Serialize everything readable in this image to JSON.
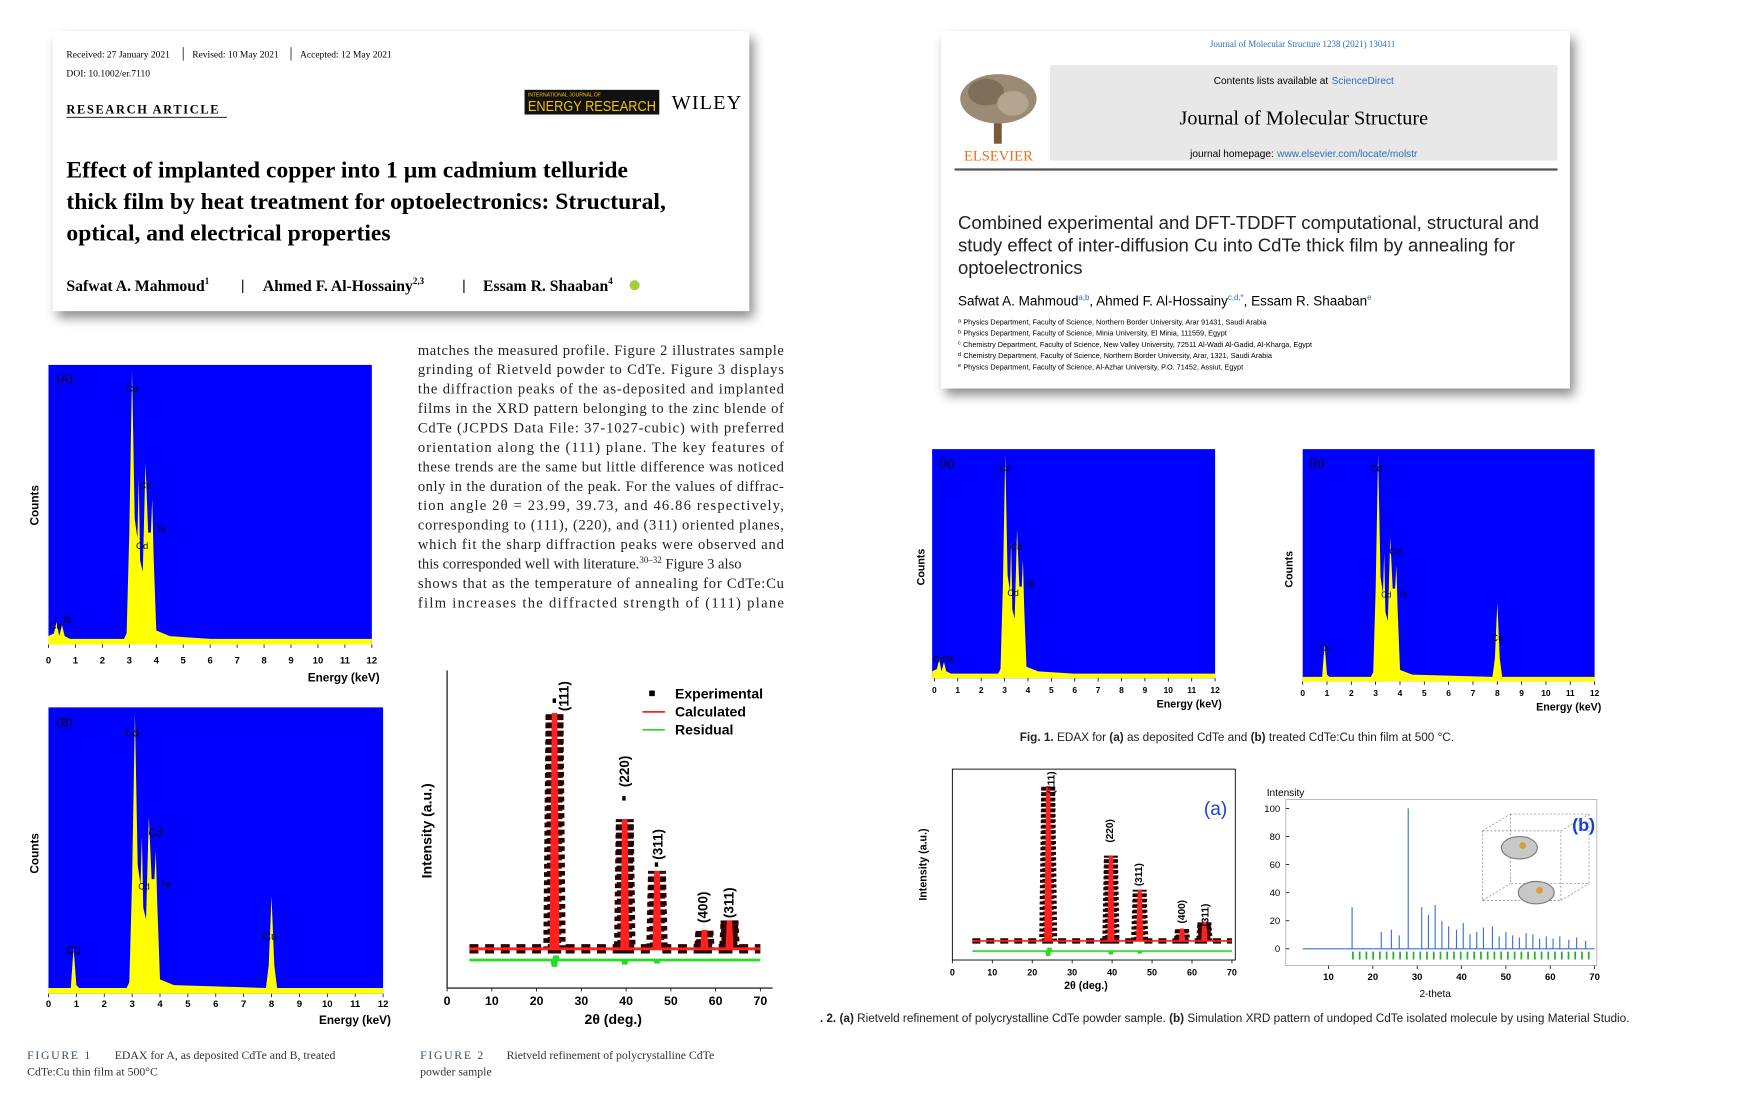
{
  "left_paper": {
    "received": "Received: 27 January 2021",
    "revised": "Revised: 10 May 2021",
    "accepted": "Accepted: 12 May 2021",
    "doi": "DOI: 10.1002/er.7110",
    "article_type": "RESEARCH ARTICLE",
    "journal_small": "INTERNATIONAL JOURNAL OF",
    "journal_name": "ENERGY RESEARCH",
    "publisher": "WILEY",
    "title_lines": [
      "Effect of implanted copper into 1 µm cadmium telluride",
      "thick film by heat treatment for optoelectronics: Structural,",
      "optical, and electrical properties"
    ],
    "authors": [
      {
        "name": "Safwat A. Mahmoud",
        "sup": "1"
      },
      {
        "name": "Ahmed F. Al-Hossainy",
        "sup": "2,3"
      },
      {
        "name": "Essam R. Shaaban",
        "sup": "4"
      }
    ]
  },
  "right_paper": {
    "citation": "Journal of Molecular Structure 1238 (2021) 130411",
    "contents": "Contents lists available at",
    "sciencedirect": "ScienceDirect",
    "journal": "Journal of Molecular Structure",
    "homepage": "journal homepage:",
    "url": "www.elsevier.com/locate/molstr",
    "publisher": "ELSEVIER",
    "title_lines": [
      "Combined experimental and DFT-TDDFT computational, structural and",
      "study effect of inter-diffusion Cu into CdTe thick film by annealing for",
      "optoelectronics"
    ],
    "authors": [
      {
        "name": "Safwat A. Mahmoud",
        "sup": "a,b"
      },
      {
        "name": ", Ahmed F. Al-Hossainy",
        "sup": "c,d,*"
      },
      {
        "name": ", Essam R. Shaaban",
        "sup": "e"
      }
    ],
    "affiliations": [
      {
        "mark": "a",
        "text": "Physics Department, Faculty of Science, Northern Border University, Arar 91431, Saudi Arabia"
      },
      {
        "mark": "b",
        "text": "Physics Department, Faculty of Science, Minia University, El Minia, 111559, Egypt"
      },
      {
        "mark": "c",
        "text": "Chemistry Department, Faculty of Science, New Valley University, 72511 Al-Wadi Al-Gadid, Al-Kharga, Egypt"
      },
      {
        "mark": "d",
        "text": "Chemistry Department, Faculty of Science, Northern Border University, Arar, 1321, Saudi Arabia"
      },
      {
        "mark": "e",
        "text": "Physics Department, Faculty of Science, Al-Azhar University, P.O. 71452, Assiut, Egypt"
      }
    ]
  },
  "body_text": [
    "matches the measured profile. Figure 2 illustrates sample",
    "grinding of Rietveld powder to CdTe. Figure 3 displays",
    "the diffraction peaks of the as-deposited and implanted",
    "films in the XRD pattern belonging to the zinc blende of",
    "CdTe (JCPDS Data File: 37-1027-cubic) with preferred",
    "orientation along the (111) plane. The key features of",
    "these trends are the same but little difference was noticed",
    "only in the duration of the peak. For the values of diffrac-",
    "tion angle 2θ = 23.99, 39.73, and 46.86 respectively,",
    "corresponding to (111), (220), and (311) oriented planes,",
    "which fit the sharp diffraction peaks were observed and",
    [
      "this corresponded well with literature.",
      "30–32",
      " Figure 3 also"
    ],
    "shows that as the temperature of annealing for CdTe:Cu",
    "film increases the diffracted strength of (111) plane"
  ],
  "edax_panels": [
    {
      "panel": "(A)",
      "y_label": "Counts",
      "x_label": "Energy (keV)",
      "x_ticks": [
        0,
        1,
        2,
        3,
        4,
        5,
        6,
        7,
        8,
        9,
        10,
        11,
        12
      ],
      "peak_labels": [
        "Cd",
        "Cd",
        "Te",
        "Cd",
        "Cd",
        "Te"
      ]
    },
    {
      "panel": "(B)",
      "y_label": "Counts",
      "x_label": "Energy (keV)",
      "x_ticks": [
        0,
        1,
        2,
        3,
        4,
        5,
        6,
        7,
        8,
        9,
        10,
        11,
        12
      ],
      "peak_labels": [
        "Cd",
        "Cd",
        "Te",
        "Cd",
        "Cu",
        "Cu"
      ]
    },
    {
      "panel": "(a)",
      "y_label": "Counts",
      "x_label": "Energy (keV)",
      "x_ticks": [
        0,
        1,
        2,
        3,
        4,
        5,
        6,
        7,
        8,
        9,
        10,
        11,
        12
      ],
      "peak_labels": [
        "Cd",
        "Cd",
        "Te",
        "Cd",
        "Cd",
        "Te"
      ]
    },
    {
      "panel": "(b)",
      "y_label": "Counts",
      "x_label": "Energy (keV)",
      "x_ticks": [
        0,
        1,
        2,
        3,
        4,
        5,
        6,
        7,
        8,
        9,
        10,
        11,
        12
      ],
      "peak_labels": [
        "Cd",
        "Cd",
        "Te",
        "Cd",
        "Cu",
        "Cu"
      ]
    }
  ],
  "xrd": {
    "fig2": {
      "y_label": "Intensity (a.u.)",
      "x_label": "2θ (deg.)",
      "x_ticks": [
        0,
        10,
        20,
        30,
        40,
        50,
        60,
        70
      ],
      "legend": [
        "Experimental",
        "Calculated",
        "Residual"
      ],
      "peak_labels": [
        "(111)",
        "(220)",
        "(311)",
        "(400)",
        "(311)"
      ]
    },
    "right_a": {
      "panel": "(a)",
      "y_label": "Intensity (a.u.)",
      "x_label": "2θ (deg.)",
      "x_ticks": [
        0,
        10,
        20,
        30,
        40,
        50,
        60,
        70
      ],
      "peak_labels": [
        "(111)",
        "(220)",
        "(311)",
        "(400)",
        "(311)"
      ]
    },
    "right_b": {
      "panel": "(b)",
      "y_label": "Intensity",
      "x_label": "2-theta",
      "x_ticks": [
        10,
        20,
        30,
        40,
        50,
        60,
        70
      ],
      "y_ticks": [
        100,
        80,
        60,
        40,
        20,
        0
      ]
    }
  },
  "captions": {
    "fig1_label": "FIGURE 1",
    "fig1_lines": [
      "EDAX for A, as deposited CdTe and B, treated",
      "CdTe:Cu thin film at 500°C"
    ],
    "fig2_label": "FIGURE 2",
    "fig2_lines": [
      "Rietveld refinement of polycrystalline CdTe",
      "powder sample"
    ],
    "right_fig1": [
      "Fig. 1.",
      " EDAX for",
      " (a)",
      " as deposited CdTe and",
      " (b)",
      " treated CdTe:Cu thin film at 500 °C."
    ],
    "right_fig2": [
      ". 2.",
      " (a)",
      " Rietveld refinement of polycrystalline CdTe powder sample.",
      " (b)",
      " Simulation XRD pattern of undoped CdTe isolated molecule by using Material Studio."
    ]
  }
}
